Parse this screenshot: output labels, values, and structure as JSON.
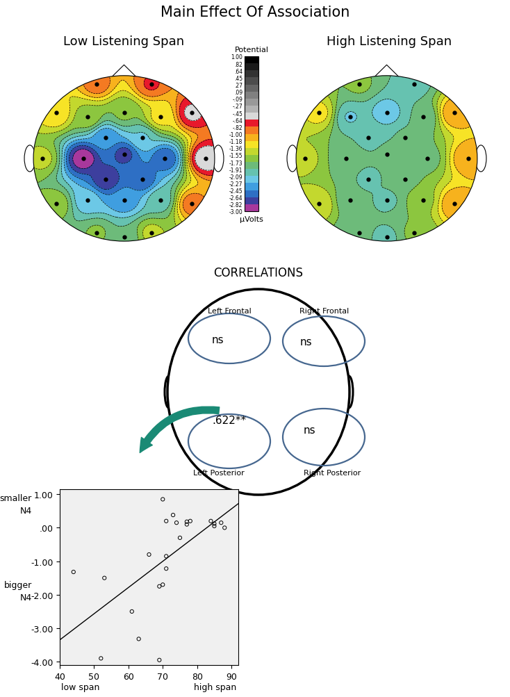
{
  "title": "Main Effect Of Association",
  "colorbar": {
    "title": "Potential",
    "unit": "µVolts",
    "colorbar_range": [
      -3.0,
      1.0
    ],
    "ticks": [
      {
        "value": -3.0,
        "label": "-3.00"
      },
      {
        "value": -2.82,
        "label": "-2.82"
      },
      {
        "value": -2.64,
        "label": "-2.64"
      },
      {
        "value": -2.45,
        "label": "-2.45"
      },
      {
        "value": -2.27,
        "label": "-2.27"
      },
      {
        "value": -2.09,
        "label": "-2.09"
      },
      {
        "value": -1.91,
        "label": "-1.91"
      },
      {
        "value": -1.73,
        "label": "-1.73"
      },
      {
        "value": -1.55,
        "label": "-1.55"
      },
      {
        "value": -1.36,
        "label": "-1.36"
      },
      {
        "value": -1.18,
        "label": "-1.18"
      },
      {
        "value": -1.0,
        "label": "-1.00"
      },
      {
        "value": -0.82,
        "label": "-.82"
      },
      {
        "value": -0.64,
        "label": "-.64"
      },
      {
        "value": -0.45,
        "label": "-.45"
      },
      {
        "value": -0.27,
        "label": "-.27"
      },
      {
        "value": -0.09,
        "label": "-.09"
      },
      {
        "value": 0.09,
        "label": ".09"
      },
      {
        "value": 0.27,
        "label": ".27"
      },
      {
        "value": 0.45,
        "label": ".45"
      },
      {
        "value": 0.64,
        "label": ".64"
      },
      {
        "value": 0.82,
        "label": ".82"
      },
      {
        "value": 1.0,
        "label": "1.00"
      }
    ],
    "colors": [
      "#a8389c",
      "#3d3f9e",
      "#2e6fc4",
      "#3f9ee0",
      "#6cc8e6",
      "#66c2b0",
      "#6dbb7a",
      "#8cc63f",
      "#c3d82e",
      "#f7e326",
      "#f7b21d",
      "#f47a22",
      "#e8192c",
      "#d9d9d9",
      "#b3b3b3",
      "#999999",
      "#808080",
      "#666666",
      "#4d4d4d",
      "#333333",
      "#1a1a1a",
      "#000000"
    ]
  },
  "correlations": {
    "title": "CORRELATIONS",
    "regions": [
      {
        "name": "Left Frontal",
        "value": "ns"
      },
      {
        "name": "Right Frontal",
        "value": "ns"
      },
      {
        "name": "Left Posterior",
        "value": ".622**"
      },
      {
        "name": "Right Posterior",
        "value": "ns"
      }
    ]
  },
  "chart_data": [
    {
      "type": "topomap",
      "title": "Low Listening Span",
      "electrodes": {
        "x": [
          -0.3,
          0.3,
          -0.75,
          -0.4,
          0.0,
          0.4,
          0.75,
          -0.9,
          -0.45,
          0.0,
          0.45,
          0.9,
          -0.2,
          0.2,
          -0.2,
          0.2,
          -0.75,
          -0.4,
          0.0,
          0.4,
          0.75,
          -0.3,
          0.0,
          0.3
        ],
        "y": [
          0.9,
          0.9,
          0.55,
          0.5,
          0.55,
          0.5,
          0.55,
          0.0,
          0.0,
          0.05,
          0.0,
          0.0,
          0.25,
          0.25,
          -0.25,
          -0.25,
          -0.55,
          -0.5,
          -0.5,
          -0.5,
          -0.55,
          -0.9,
          -0.95,
          -0.9
        ],
        "values": [
          -0.9,
          -0.8,
          -1.2,
          -1.6,
          -1.7,
          -1.3,
          -0.6,
          -1.5,
          -2.95,
          -2.7,
          -2.6,
          -0.5,
          -2.4,
          -2.1,
          -2.8,
          -2.6,
          -1.6,
          -2.2,
          -2.4,
          -2.0,
          -0.9,
          -1.7,
          -1.9,
          -1.5
        ]
      }
    },
    {
      "type": "topomap",
      "title": "High Listening Span",
      "electrodes": {
        "x": [
          -0.3,
          0.3,
          -0.75,
          -0.4,
          0.0,
          0.4,
          0.75,
          -0.9,
          -0.45,
          0.0,
          0.45,
          0.9,
          -0.2,
          0.2,
          -0.2,
          0.2,
          -0.75,
          -0.4,
          0.0,
          0.4,
          0.75,
          -0.3,
          0.0,
          0.3
        ],
        "y": [
          0.9,
          0.9,
          0.55,
          0.5,
          0.55,
          0.5,
          0.55,
          0.0,
          0.0,
          0.05,
          0.0,
          0.0,
          0.25,
          0.25,
          -0.25,
          -0.25,
          -0.55,
          -0.5,
          -0.5,
          -0.5,
          -0.55,
          -0.9,
          -0.95,
          -0.9
        ],
        "values": [
          -1.7,
          -2.0,
          -1.3,
          -2.1,
          -2.2,
          -1.9,
          -1.0,
          -1.5,
          -1.8,
          -1.9,
          -1.8,
          -1.0,
          -1.95,
          -1.9,
          -1.95,
          -1.8,
          -1.4,
          -1.85,
          -1.95,
          -1.6,
          -1.0,
          -1.9,
          -1.95,
          -1.7
        ]
      }
    },
    {
      "type": "scatter",
      "color": "#000000",
      "marker": "o",
      "x": [
        44,
        52,
        53,
        61,
        63,
        66,
        69,
        69,
        70,
        70,
        71,
        71,
        71,
        73,
        74,
        75,
        77,
        77,
        78,
        84,
        85,
        85,
        87,
        88
      ],
      "values": [
        -1.32,
        -3.9,
        -1.5,
        -2.5,
        -3.32,
        -0.8,
        -3.95,
        -1.75,
        -1.7,
        0.85,
        0.2,
        -0.85,
        -1.22,
        0.38,
        0.15,
        -0.3,
        0.1,
        0.18,
        0.2,
        0.2,
        0.05,
        0.12,
        0.15,
        0.0
      ],
      "fit": {
        "x": [
          40,
          92
        ],
        "values": [
          -3.35,
          0.72
        ]
      },
      "xlim": [
        40,
        92
      ],
      "xticks": [
        40,
        50,
        60,
        70,
        80,
        90
      ],
      "ylim": [
        -4.1,
        1.15
      ],
      "yticks": [
        {
          "value": -4,
          "label": "-4.00"
        },
        {
          "value": -3,
          "label": "-3.00"
        },
        {
          "value": -2,
          "label": "-2.00"
        },
        {
          "value": -1,
          "label": "-1.00"
        },
        {
          "value": 0,
          "label": ".00"
        },
        {
          "value": 1,
          "label": "1.00"
        }
      ],
      "annotations": [
        {
          "text": "smaller\nN4"
        },
        {
          "text": "bigger\nN4"
        },
        {
          "text": "low span"
        },
        {
          "text": "high span"
        }
      ]
    }
  ]
}
